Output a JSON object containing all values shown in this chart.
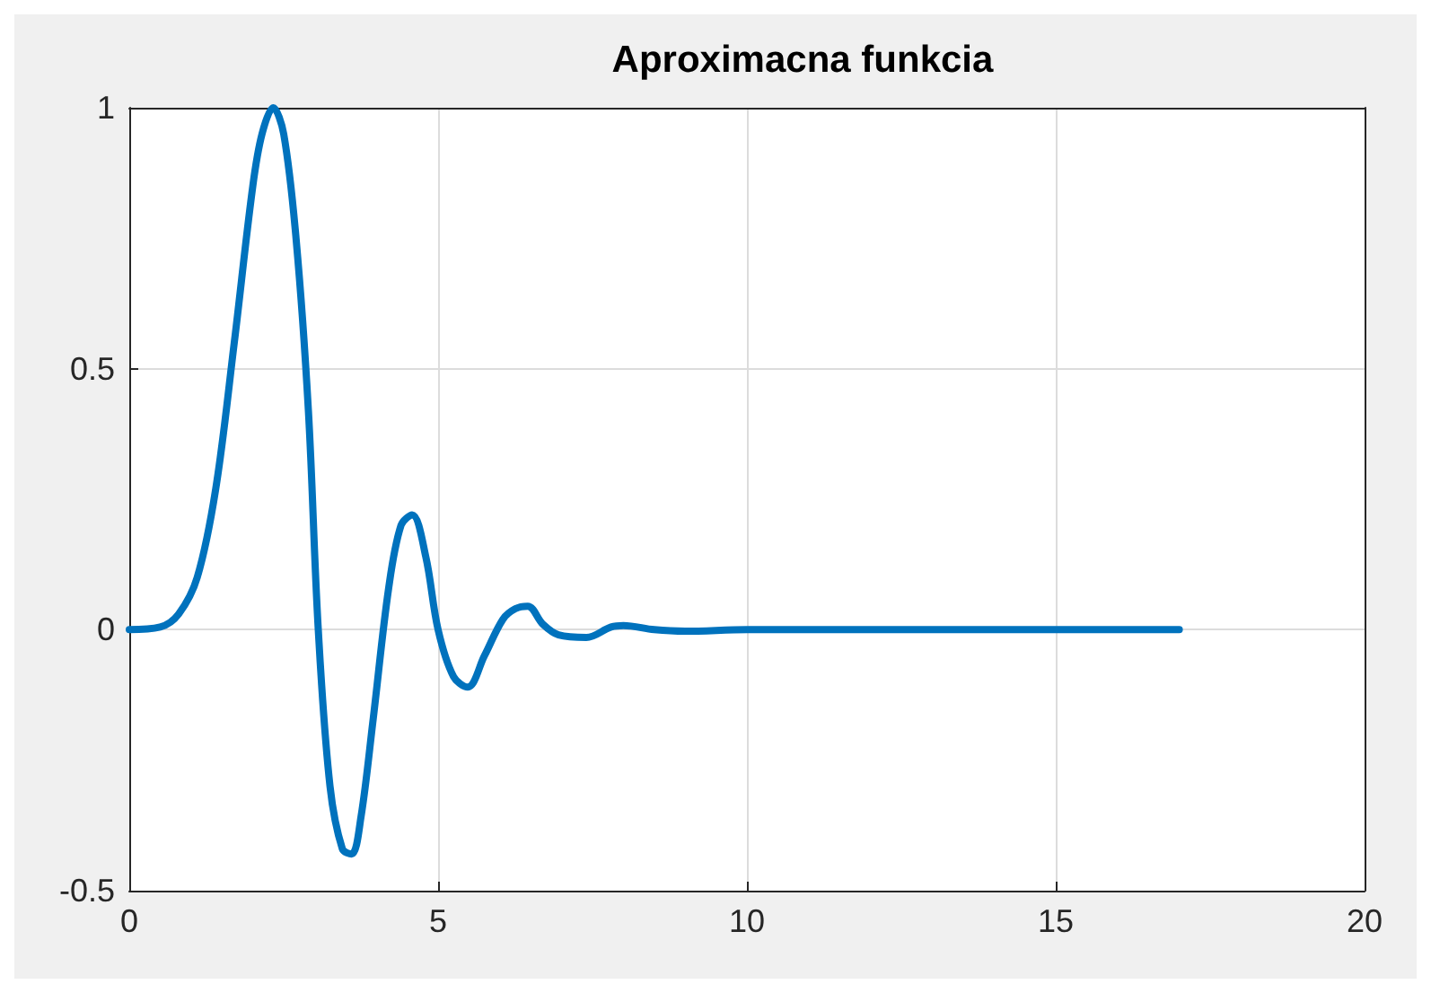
{
  "chart_data": {
    "type": "line",
    "title": "Aproximacna funkcia",
    "grid": true,
    "marker": "none",
    "line_style": "solid",
    "xlim": [
      0,
      20
    ],
    "xticks": [
      0,
      5,
      10,
      15,
      20
    ],
    "ylim": [
      -0.5,
      1
    ],
    "yticks": [
      -0.5,
      0,
      0.5,
      1
    ],
    "series": [
      {
        "color": "#0072bd",
        "x": [
          0,
          0.5,
          0.8,
          1.1,
          1.4,
          1.7,
          2.0,
          2.15,
          2.33,
          2.5,
          2.7,
          2.9,
          3.06,
          3.25,
          3.45,
          3.6,
          3.75,
          3.95,
          4.2,
          4.4,
          4.58,
          4.8,
          5.0,
          5.25,
          5.48,
          5.75,
          6.05,
          6.25,
          6.45,
          6.7,
          6.95,
          7.4,
          7.8,
          8.0,
          8.5,
          9,
          10,
          17
        ],
        "values": [
          0,
          0.005,
          0.03,
          0.1,
          0.27,
          0.55,
          0.85,
          0.95,
          1.0,
          0.95,
          0.75,
          0.42,
          0.0,
          -0.3,
          -0.42,
          -0.43,
          -0.36,
          -0.17,
          0.08,
          0.2,
          0.22,
          0.14,
          0.0,
          -0.09,
          -0.11,
          -0.05,
          0.02,
          0.04,
          0.045,
          0.01,
          -0.01,
          -0.015,
          0.005,
          0.008,
          0,
          -0.003,
          0,
          0
        ]
      }
    ]
  }
}
